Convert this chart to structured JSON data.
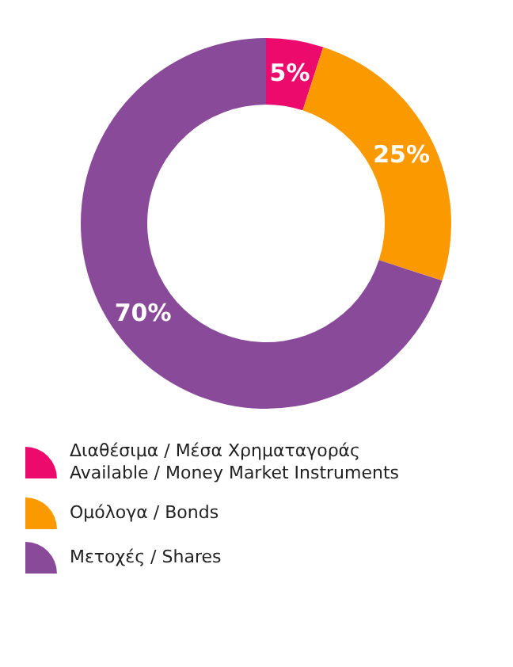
{
  "chart_data": {
    "type": "donut",
    "categories": [
      "Διαθέσιμα / Μέσα Χρηματαγοράς Available / Money Market Instruments",
      "Ομόλογα / Bonds",
      "Μετοχές / Shares"
    ],
    "values": [
      5,
      25,
      70
    ],
    "colors": [
      "#ec0b6d",
      "#fb9900",
      "#8a4a9a"
    ],
    "value_labels": [
      "5%",
      "25%",
      "70%"
    ],
    "legend": "bottom"
  }
}
